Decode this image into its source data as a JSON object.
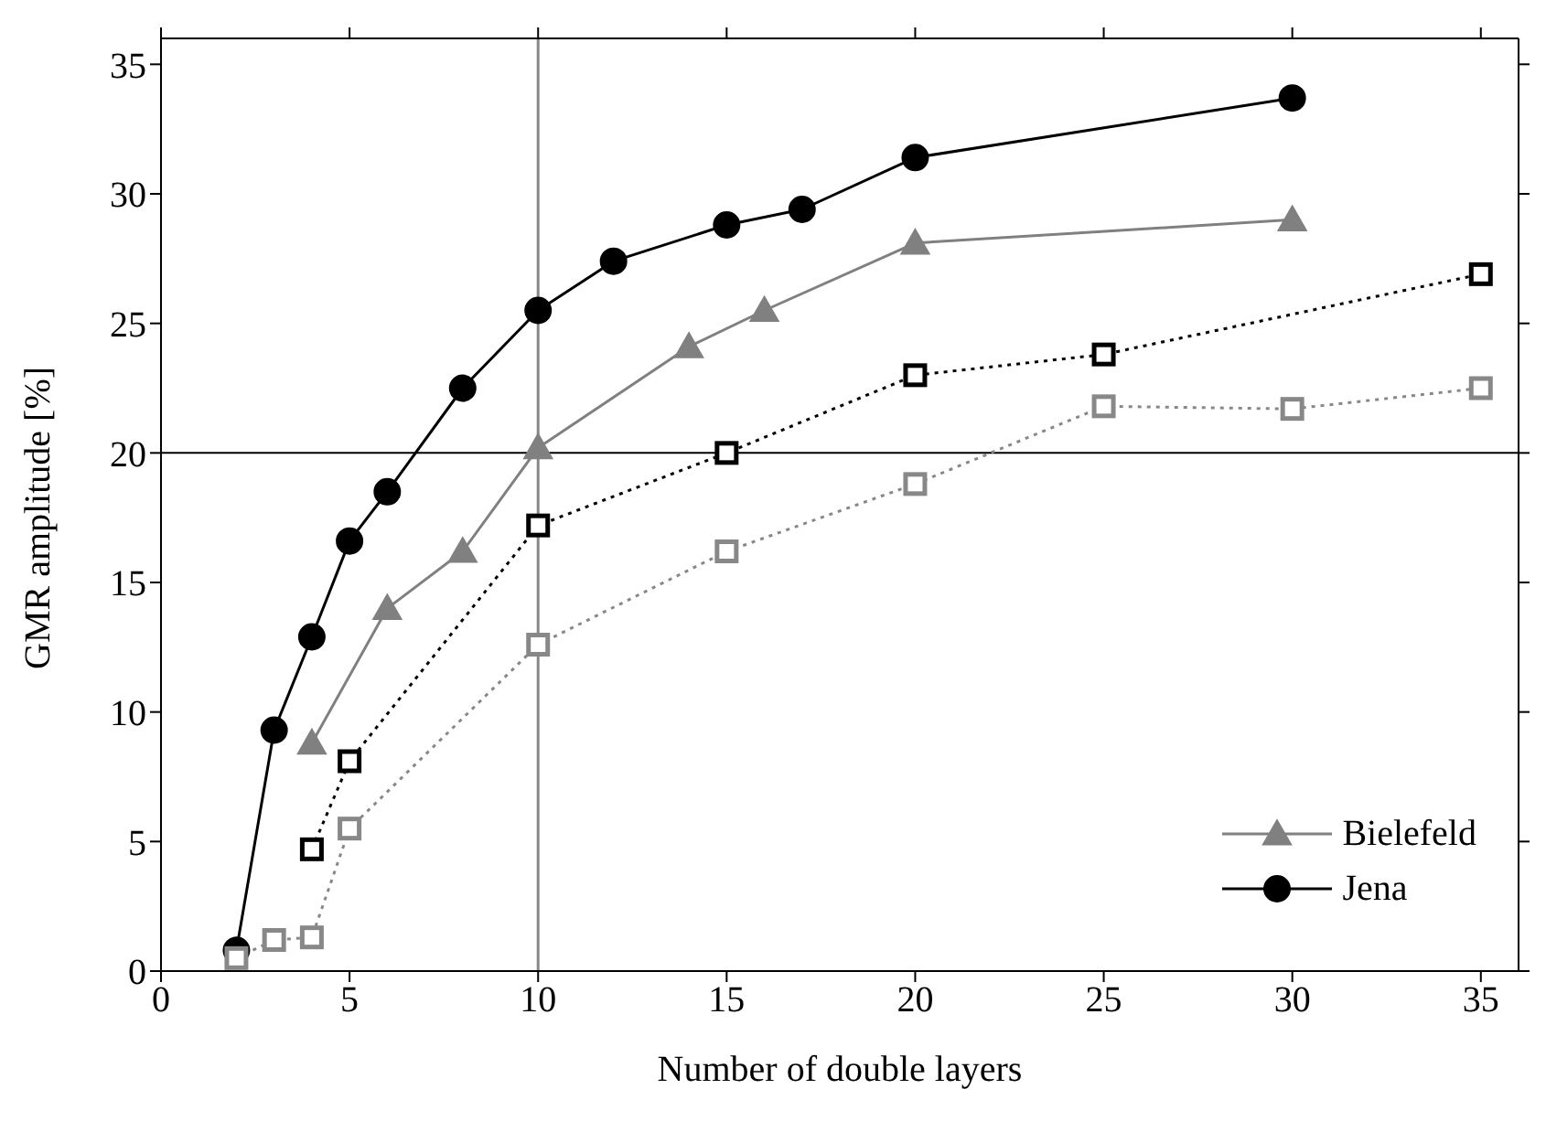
{
  "chart_data": {
    "type": "line",
    "xlabel": "Number of double layers",
    "ylabel": "GMR amplitude [%]",
    "xlim": [
      0,
      36
    ],
    "xticks": [
      0,
      5,
      10,
      15,
      20,
      25,
      30,
      35
    ],
    "ylim": [
      0,
      36
    ],
    "yticks": [
      0,
      5,
      10,
      15,
      20,
      25,
      30,
      35
    ],
    "legend": "bottom right",
    "ref_lines": [
      {
        "axis": "x",
        "value": 10,
        "color": "#888888"
      },
      {
        "axis": "y",
        "value": 20,
        "color": "#000000"
      }
    ],
    "series": [
      {
        "name": "Bielefeld",
        "color": "#808080",
        "marker": "triangle",
        "line_style": "solid",
        "x": [
          4,
          6,
          8,
          10,
          14,
          16,
          20,
          30
        ],
        "values": [
          8.8,
          14.0,
          16.2,
          20.2,
          24.1,
          25.5,
          28.1,
          29.0
        ]
      },
      {
        "name": "Jena",
        "color": "#000000",
        "marker": "circle",
        "line_style": "solid",
        "x": [
          2,
          3,
          4,
          5,
          6,
          8,
          10,
          12,
          15,
          17,
          20,
          30
        ],
        "values": [
          0.8,
          9.3,
          12.9,
          16.6,
          18.5,
          22.5,
          25.5,
          27.4,
          28.8,
          29.4,
          31.4,
          33.7
        ]
      },
      {
        "color": "#000000",
        "marker": "square",
        "line_style": "dotted",
        "x": [
          4,
          5,
          10,
          15,
          20,
          25,
          35
        ],
        "values": [
          4.7,
          8.1,
          17.2,
          20.0,
          23.0,
          23.8,
          26.9
        ]
      },
      {
        "color": "#888888",
        "marker": "square",
        "line_style": "dotted",
        "x": [
          2,
          3,
          4,
          5,
          10,
          15,
          20,
          25,
          30,
          35
        ],
        "values": [
          0.5,
          1.2,
          1.3,
          5.5,
          12.6,
          16.2,
          18.8,
          21.8,
          21.7,
          22.5
        ]
      }
    ]
  }
}
